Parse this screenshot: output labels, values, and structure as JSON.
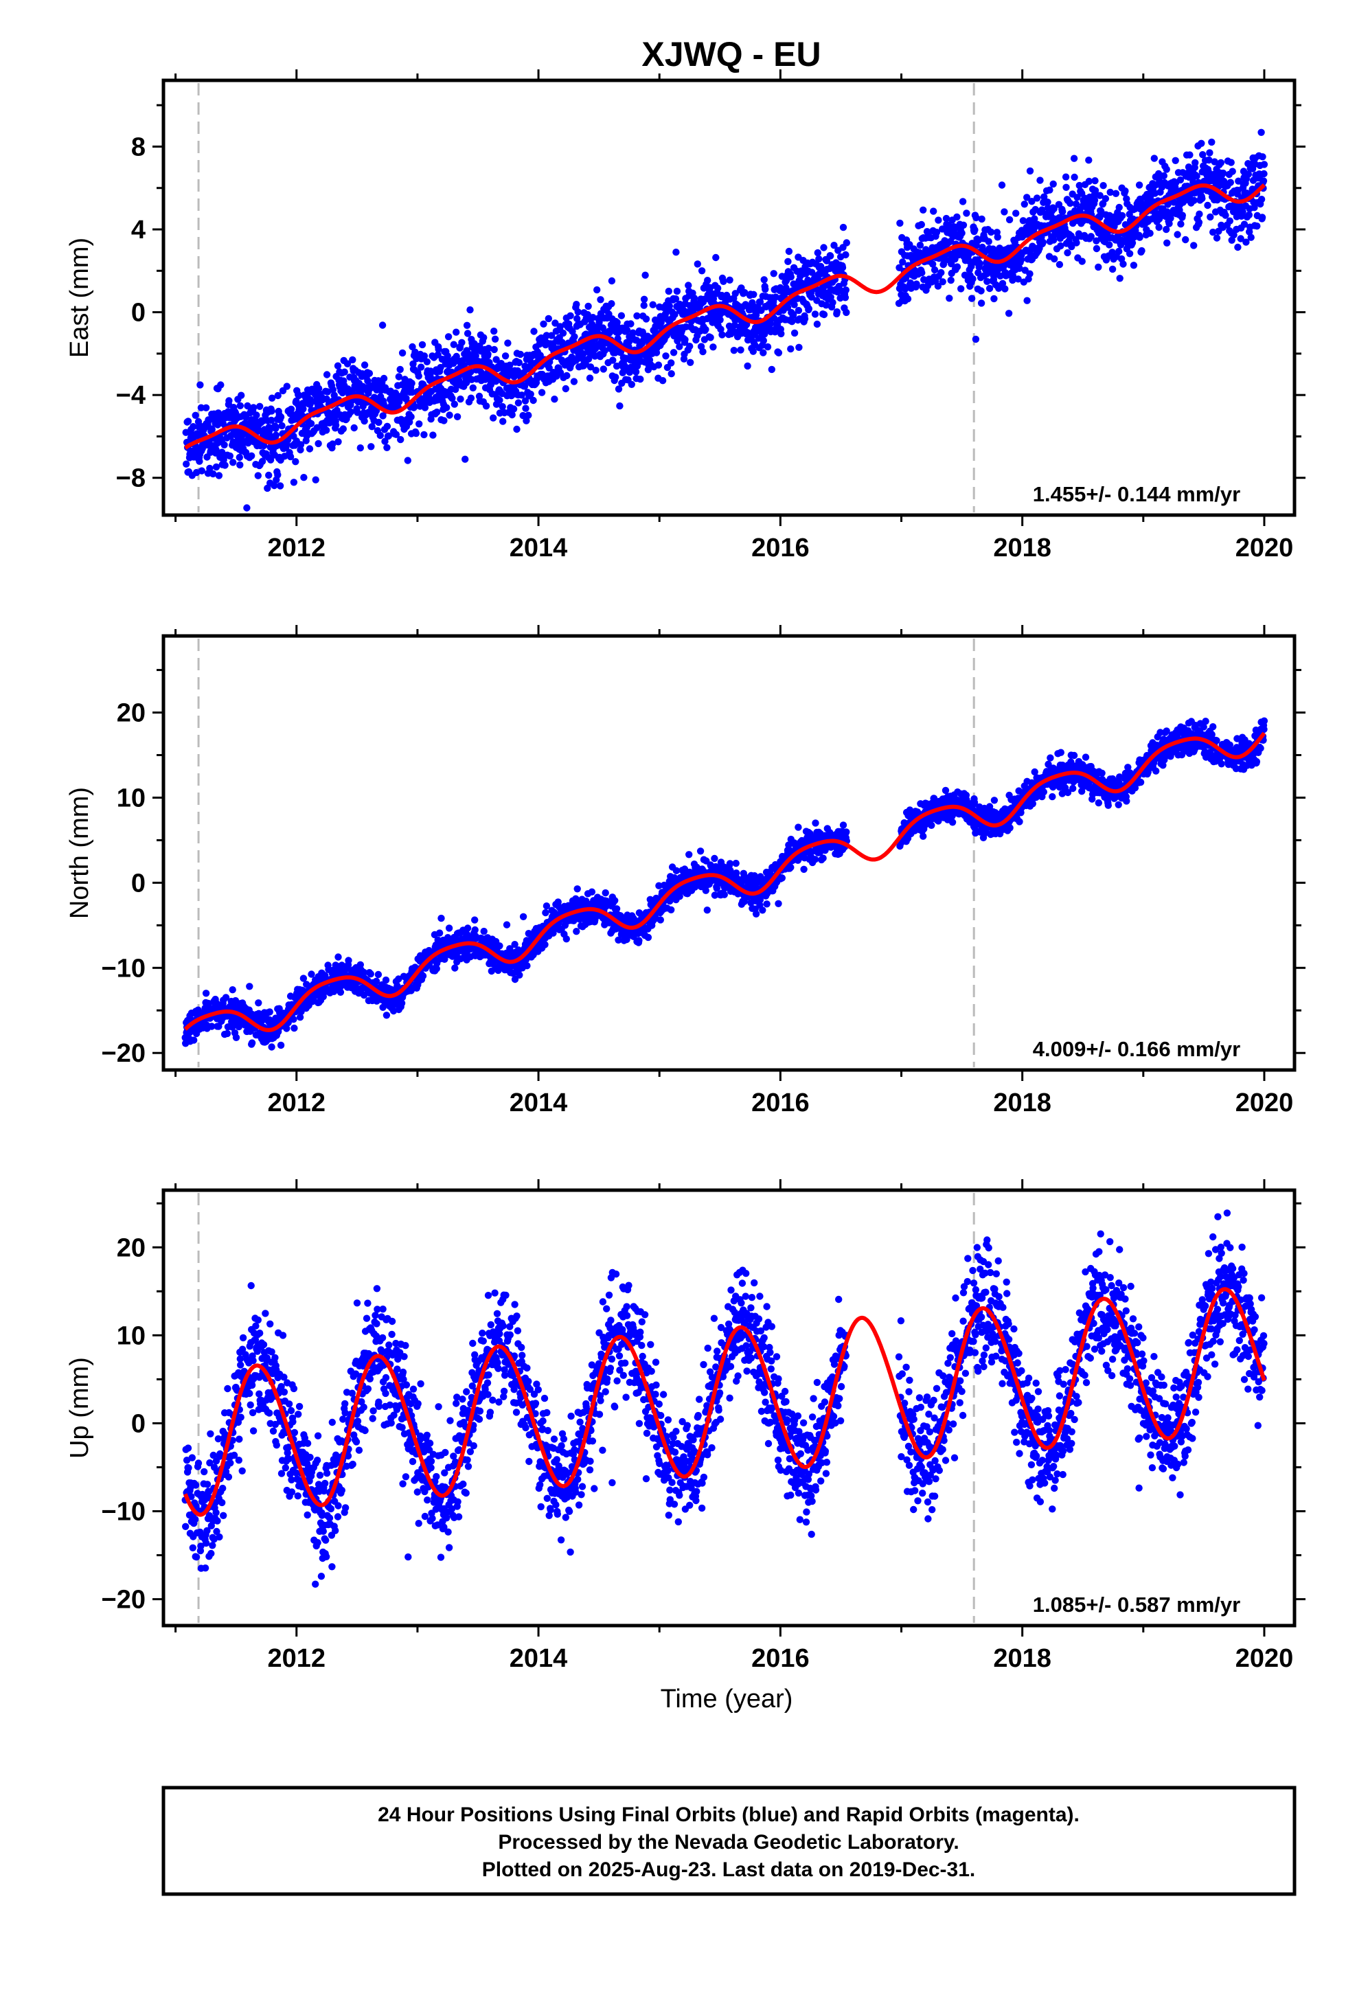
{
  "title": "XJWQ - EU",
  "xlabel": "Time (year)",
  "caption": {
    "line1": "24 Hour Positions Using Final Orbits (blue) and Rapid Orbits (magenta).",
    "line2": "Processed by the Nevada Geodetic Laboratory.",
    "line3": "Plotted on 2025-Aug-23. Last data on 2019-Dec-31."
  },
  "colors": {
    "data": "#0000ff",
    "model": "#ff0000",
    "event_line": "#bbbbbb"
  },
  "chart_data": [
    {
      "type": "scatter",
      "name": "east",
      "ylabel": "East (mm)",
      "xlim": [
        2010.9,
        2020.25
      ],
      "ylim": [
        -9.8,
        11.2
      ],
      "yticks": [
        -8,
        -4,
        0,
        4,
        8
      ],
      "xticks": [
        2012,
        2014,
        2016,
        2018,
        2020
      ],
      "event_lines": [
        2011.19,
        2017.6
      ],
      "data_start": 2011.08,
      "data_end": 2020.0,
      "gap": [
        2016.55,
        2016.98
      ],
      "rate_label": "1.455+/- 0.144 mm/yr",
      "model": {
        "ref_year": 2011.1,
        "offset": -6.6,
        "trend": 1.455,
        "annual_cos": -0.35,
        "annual_sin": 0.45,
        "semiannual_cos": 0.15,
        "semiannual_sin": 0.1
      },
      "noise": 0.9
    },
    {
      "type": "scatter",
      "name": "north",
      "ylabel": "North (mm)",
      "xlim": [
        2010.9,
        2020.25
      ],
      "ylim": [
        -22,
        29
      ],
      "yticks": [
        -20,
        -10,
        0,
        10,
        20
      ],
      "xticks": [
        2012,
        2014,
        2016,
        2018,
        2020
      ],
      "event_lines": [
        2011.19,
        2017.6
      ],
      "data_start": 2011.08,
      "data_end": 2020.0,
      "gap": [
        2016.55,
        2016.98
      ],
      "rate_label": "4.009+/- 0.166 mm/yr",
      "model": {
        "ref_year": 2011.1,
        "offset": -17.8,
        "trend": 4.009,
        "annual_cos": -0.6,
        "annual_sin": 1.8,
        "semiannual_cos": 0.3,
        "semiannual_sin": 0.2
      },
      "noise": 0.9
    },
    {
      "type": "scatter",
      "name": "up",
      "ylabel": "Up (mm)",
      "xlim": [
        2010.9,
        2020.25
      ],
      "ylim": [
        -23,
        26.5
      ],
      "yticks": [
        -20,
        -10,
        0,
        10,
        20
      ],
      "xticks": [
        2012,
        2014,
        2016,
        2018,
        2020
      ],
      "event_lines": [
        2011.19,
        2017.6
      ],
      "data_start": 2011.08,
      "data_end": 2020.0,
      "gap": [
        2016.55,
        2016.98
      ],
      "rate_label": "1.085+/- 0.587 mm/yr",
      "model": {
        "ref_year": 2011.1,
        "offset": -2.2,
        "trend": 1.085,
        "annual_cos": -3.0,
        "annual_sin": -7.6,
        "semiannual_cos": 0.4,
        "semiannual_sin": 0.3
      },
      "noise": 3.2
    }
  ]
}
